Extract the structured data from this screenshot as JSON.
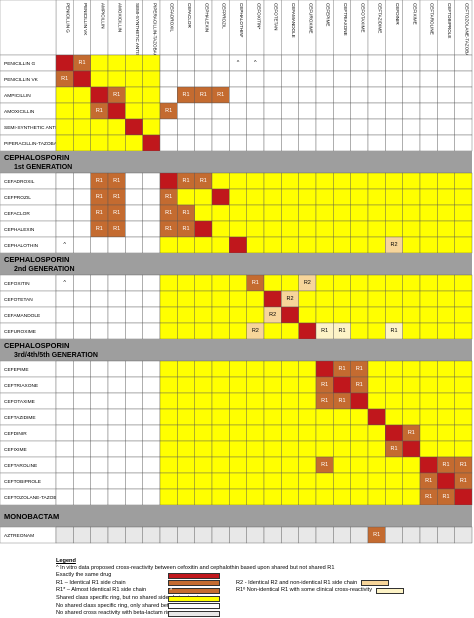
{
  "columns": [
    "PENICILLIN G",
    "PENICILLIN VK",
    "AMPICILLIN",
    "AMOXICILLIN",
    "SEMI-SYNTHETIC ANTISTAPH PEN",
    "PIPERACILLIN-TAZOBACTAM",
    "CEFADROXIL",
    "CEFACLOR",
    "CEPHALEXIN",
    "CEFPROZIL",
    "CEPHALOTHIN*",
    "CEFOXITIN*",
    "CEFOTETAN",
    "CEFAMANDOLE",
    "CEFUROXIME",
    "CEFEPIME",
    "CEFTRIAXONE",
    "CEFOTAXIME",
    "CEFTAZIDIME",
    "CEFDINIR",
    "CEFIXIME",
    "CEFTAROLINE",
    "CEFTOBIPROLE",
    "CEFTOZOLANE-TAZOBACTAM"
  ],
  "sections": [
    {
      "title": "",
      "rows": [
        {
          "label": "PENICILLIN G",
          "g": 0
        },
        {
          "label": "PENICILLIN VK",
          "g": 0
        },
        {
          "label": "AMPICILLIN",
          "g": 0
        },
        {
          "label": "AMOXICILLIN",
          "g": 0
        },
        {
          "label": "SEMI-SYNTHETIC ANTISTAPH PEN",
          "g": 0
        },
        {
          "label": "PIPERACILLIN-TAZOBACTAM",
          "g": 0
        }
      ]
    },
    {
      "title": "CEPHALOSPORIN",
      "subtitle": "1st GENERATION",
      "rows": [
        {
          "label": "CEFADROXIL",
          "g": 1
        },
        {
          "label": "CEFPROZIL",
          "g": 1
        },
        {
          "label": "CEFACLOR",
          "g": 1
        },
        {
          "label": "CEPHALEXIN",
          "g": 1
        },
        {
          "label": "CEPHALOTHIN",
          "g": 1
        }
      ]
    },
    {
      "title": "CEPHALOSPORIN",
      "subtitle": "2nd GENERATION",
      "rows": [
        {
          "label": "CEFOXITIN",
          "g": 2
        },
        {
          "label": "CEFOTETAN",
          "g": 2
        },
        {
          "label": "CEFAMANDOLE",
          "g": 2
        },
        {
          "label": "CEFUROXIME",
          "g": 2
        }
      ]
    },
    {
      "title": "CEPHALOSPORIN",
      "subtitle": "3rd/4th/5th GENERATION",
      "rows": [
        {
          "label": "CEFEPIME",
          "g": 3
        },
        {
          "label": "CEFTRIAXONE",
          "g": 3
        },
        {
          "label": "CEFOTAXIME",
          "g": 3
        },
        {
          "label": "CEFTAZIDIME",
          "g": 3
        },
        {
          "label": "CEFDINIR",
          "g": 3
        },
        {
          "label": "CEFIXIME",
          "g": 3
        },
        {
          "label": "CEFTAROLINE",
          "g": 3
        },
        {
          "label": "CEFTOBIPROLE",
          "g": 3
        },
        {
          "label": "CEFTOZOLANE-TAZOBACTAM",
          "g": 3
        }
      ]
    },
    {
      "title": "MONOBACTAM",
      "rows": [
        {
          "label": "AZTREONAM",
          "g": 4
        }
      ]
    }
  ],
  "column_groups": [
    0,
    0,
    0,
    0,
    0,
    0,
    1,
    1,
    1,
    1,
    1,
    2,
    2,
    2,
    2,
    3,
    3,
    3,
    3,
    3,
    3,
    3,
    3,
    3
  ],
  "special_cells": [
    {
      "row": "PENICILLIN G",
      "col": 1,
      "type": "r1",
      "text": "R1"
    },
    {
      "row": "PENICILLIN G",
      "col": 10,
      "type": "none",
      "text": "^"
    },
    {
      "row": "PENICILLIN G",
      "col": 11,
      "type": "none",
      "text": "^"
    },
    {
      "row": "PENICILLIN VK",
      "col": 0,
      "type": "r1",
      "text": "R1"
    },
    {
      "row": "AMPICILLIN",
      "col": 3,
      "type": "r1",
      "text": "R1"
    },
    {
      "row": "AMPICILLIN",
      "col": 7,
      "type": "r1",
      "text": "R1"
    },
    {
      "row": "AMPICILLIN",
      "col": 8,
      "type": "r1",
      "text": "R1"
    },
    {
      "row": "AMPICILLIN",
      "col": 9,
      "type": "r1",
      "text": "R1"
    },
    {
      "row": "AMOXICILLIN",
      "col": 2,
      "type": "r1",
      "text": "R1"
    },
    {
      "row": "AMOXICILLIN",
      "col": 6,
      "type": "r1",
      "text": "R1"
    },
    {
      "row": "CEFADROXIL",
      "col": 2,
      "type": "r1",
      "text": "R1"
    },
    {
      "row": "CEFADROXIL",
      "col": 3,
      "type": "r1",
      "text": "R1"
    },
    {
      "row": "CEFADROXIL",
      "col": 7,
      "type": "r1",
      "text": "R1"
    },
    {
      "row": "CEFADROXIL",
      "col": 8,
      "type": "r1",
      "text": "R1"
    },
    {
      "row": "CEFPROZIL",
      "col": 2,
      "type": "r1",
      "text": "R1"
    },
    {
      "row": "CEFPROZIL",
      "col": 3,
      "type": "r1",
      "text": "R1"
    },
    {
      "row": "CEFPROZIL",
      "col": 6,
      "type": "r1",
      "text": "R1"
    },
    {
      "row": "CEFACLOR",
      "col": 2,
      "type": "r1",
      "text": "R1"
    },
    {
      "row": "CEFACLOR",
      "col": 3,
      "type": "r1",
      "text": "R1"
    },
    {
      "row": "CEFACLOR",
      "col": 6,
      "type": "r1",
      "text": "R1"
    },
    {
      "row": "CEFACLOR",
      "col": 7,
      "type": "r1",
      "text": "R1"
    },
    {
      "row": "CEPHALEXIN",
      "col": 2,
      "type": "r1",
      "text": "R1"
    },
    {
      "row": "CEPHALEXIN",
      "col": 3,
      "type": "r1",
      "text": "R1"
    },
    {
      "row": "CEPHALEXIN",
      "col": 6,
      "type": "r1",
      "text": "R1"
    },
    {
      "row": "CEPHALEXIN",
      "col": 7,
      "type": "r1",
      "text": "R1"
    },
    {
      "row": "CEPHALOTHIN",
      "col": 0,
      "type": "none",
      "text": "^"
    },
    {
      "row": "CEPHALOTHIN",
      "col": 19,
      "type": "r2",
      "text": "R2"
    },
    {
      "row": "CEFOXITIN",
      "col": 0,
      "type": "none",
      "text": "^"
    },
    {
      "row": "CEFOXITIN",
      "col": 11,
      "type": "r1",
      "text": "R1"
    },
    {
      "row": "CEFOXITIN",
      "col": 14,
      "type": "r2",
      "text": "R2"
    },
    {
      "row": "CEFOTETAN",
      "col": 13,
      "type": "r2",
      "text": "R2"
    },
    {
      "row": "CEFAMANDOLE",
      "col": 12,
      "type": "r2",
      "text": "R2"
    },
    {
      "row": "CEFUROXIME",
      "col": 11,
      "type": "r2",
      "text": "R2"
    },
    {
      "row": "CEFUROXIME",
      "col": 15,
      "type": "r1n",
      "text": "R1"
    },
    {
      "row": "CEFUROXIME",
      "col": 16,
      "type": "r1n",
      "text": "R1"
    },
    {
      "row": "CEFUROXIME",
      "col": 19,
      "type": "r1n",
      "text": "R1"
    },
    {
      "row": "CEFEPIME",
      "col": 16,
      "type": "r1",
      "text": "R1"
    },
    {
      "row": "CEFEPIME",
      "col": 17,
      "type": "r1",
      "text": "R1"
    },
    {
      "row": "CEFTRIAXONE",
      "col": 15,
      "type": "r1",
      "text": "R1"
    },
    {
      "row": "CEFTRIAXONE",
      "col": 17,
      "type": "r1",
      "text": "R1"
    },
    {
      "row": "CEFOTAXIME",
      "col": 15,
      "type": "r1",
      "text": "R1"
    },
    {
      "row": "CEFOTAXIME",
      "col": 16,
      "type": "r1",
      "text": "R1"
    },
    {
      "row": "CEFDINIR",
      "col": 20,
      "type": "r1",
      "text": "R1"
    },
    {
      "row": "CEFIXIME",
      "col": 19,
      "type": "r1",
      "text": "R1"
    },
    {
      "row": "CEFTAROLINE",
      "col": 15,
      "type": "r1",
      "text": "R1"
    },
    {
      "row": "CEFTAROLINE",
      "col": 22,
      "type": "r1",
      "text": "R1"
    },
    {
      "row": "CEFTAROLINE",
      "col": 23,
      "type": "r1",
      "text": "R1"
    },
    {
      "row": "CEFTOBIPROLE",
      "col": 21,
      "type": "r1",
      "text": "R1"
    },
    {
      "row": "CEFTOBIPROLE",
      "col": 23,
      "type": "r1",
      "text": "R1"
    },
    {
      "row": "CEFTOZOLANE-TAZOBACTAM",
      "col": 21,
      "type": "r1",
      "text": "R1"
    },
    {
      "row": "CEFTOZOLANE-TAZOBACTAM",
      "col": 22,
      "type": "r1",
      "text": "R1"
    },
    {
      "row": "AZTREONAM",
      "col": 18,
      "type": "r1",
      "text": "R1"
    }
  ],
  "colors": {
    "same": "#c0171c",
    "r1": "#c46b30",
    "r2": "#f7d59a",
    "r1n": "#fdf3c6",
    "shared_ring": "#ffff00",
    "no_shared_ring": "#ffffff",
    "beta_ring_only": "#e8e8e8",
    "section_bar": "#9e9e9e"
  },
  "legend": {
    "title": "Legend",
    "note": "^ In vitro data proposed cross-reactivity between cefoxitin and cephalothin based upon shared but not shared R1",
    "items": [
      {
        "label": "Exactly the same drug",
        "color": "#c0171c",
        "mark": ""
      },
      {
        "label": "R1 – Identical R1 side chain",
        "color": "#c46b30",
        "mark": "",
        "label2": "R2 - Identical R2 and non-identical R1 side chain",
        "color2": "#f7d59a"
      },
      {
        "label": "R1* – Almost Identical R1 side chain",
        "color": "#c46b30",
        "mark": "*",
        "label2": "R1º Non-identical R1 with some clinical cross-reactivity",
        "color2": "#fdf3c6"
      },
      {
        "label": "Shared class specific ring, but no shared side chain structure",
        "color": "#ffff00",
        "mark": ""
      },
      {
        "label": "No shared class specific ring, only shared beta-lactam ring",
        "color": "#ffffff",
        "mark": ""
      },
      {
        "label": "No shared cross reactivity with beta-lactam ring",
        "color": "#e8e8e8",
        "mark": ""
      }
    ]
  }
}
